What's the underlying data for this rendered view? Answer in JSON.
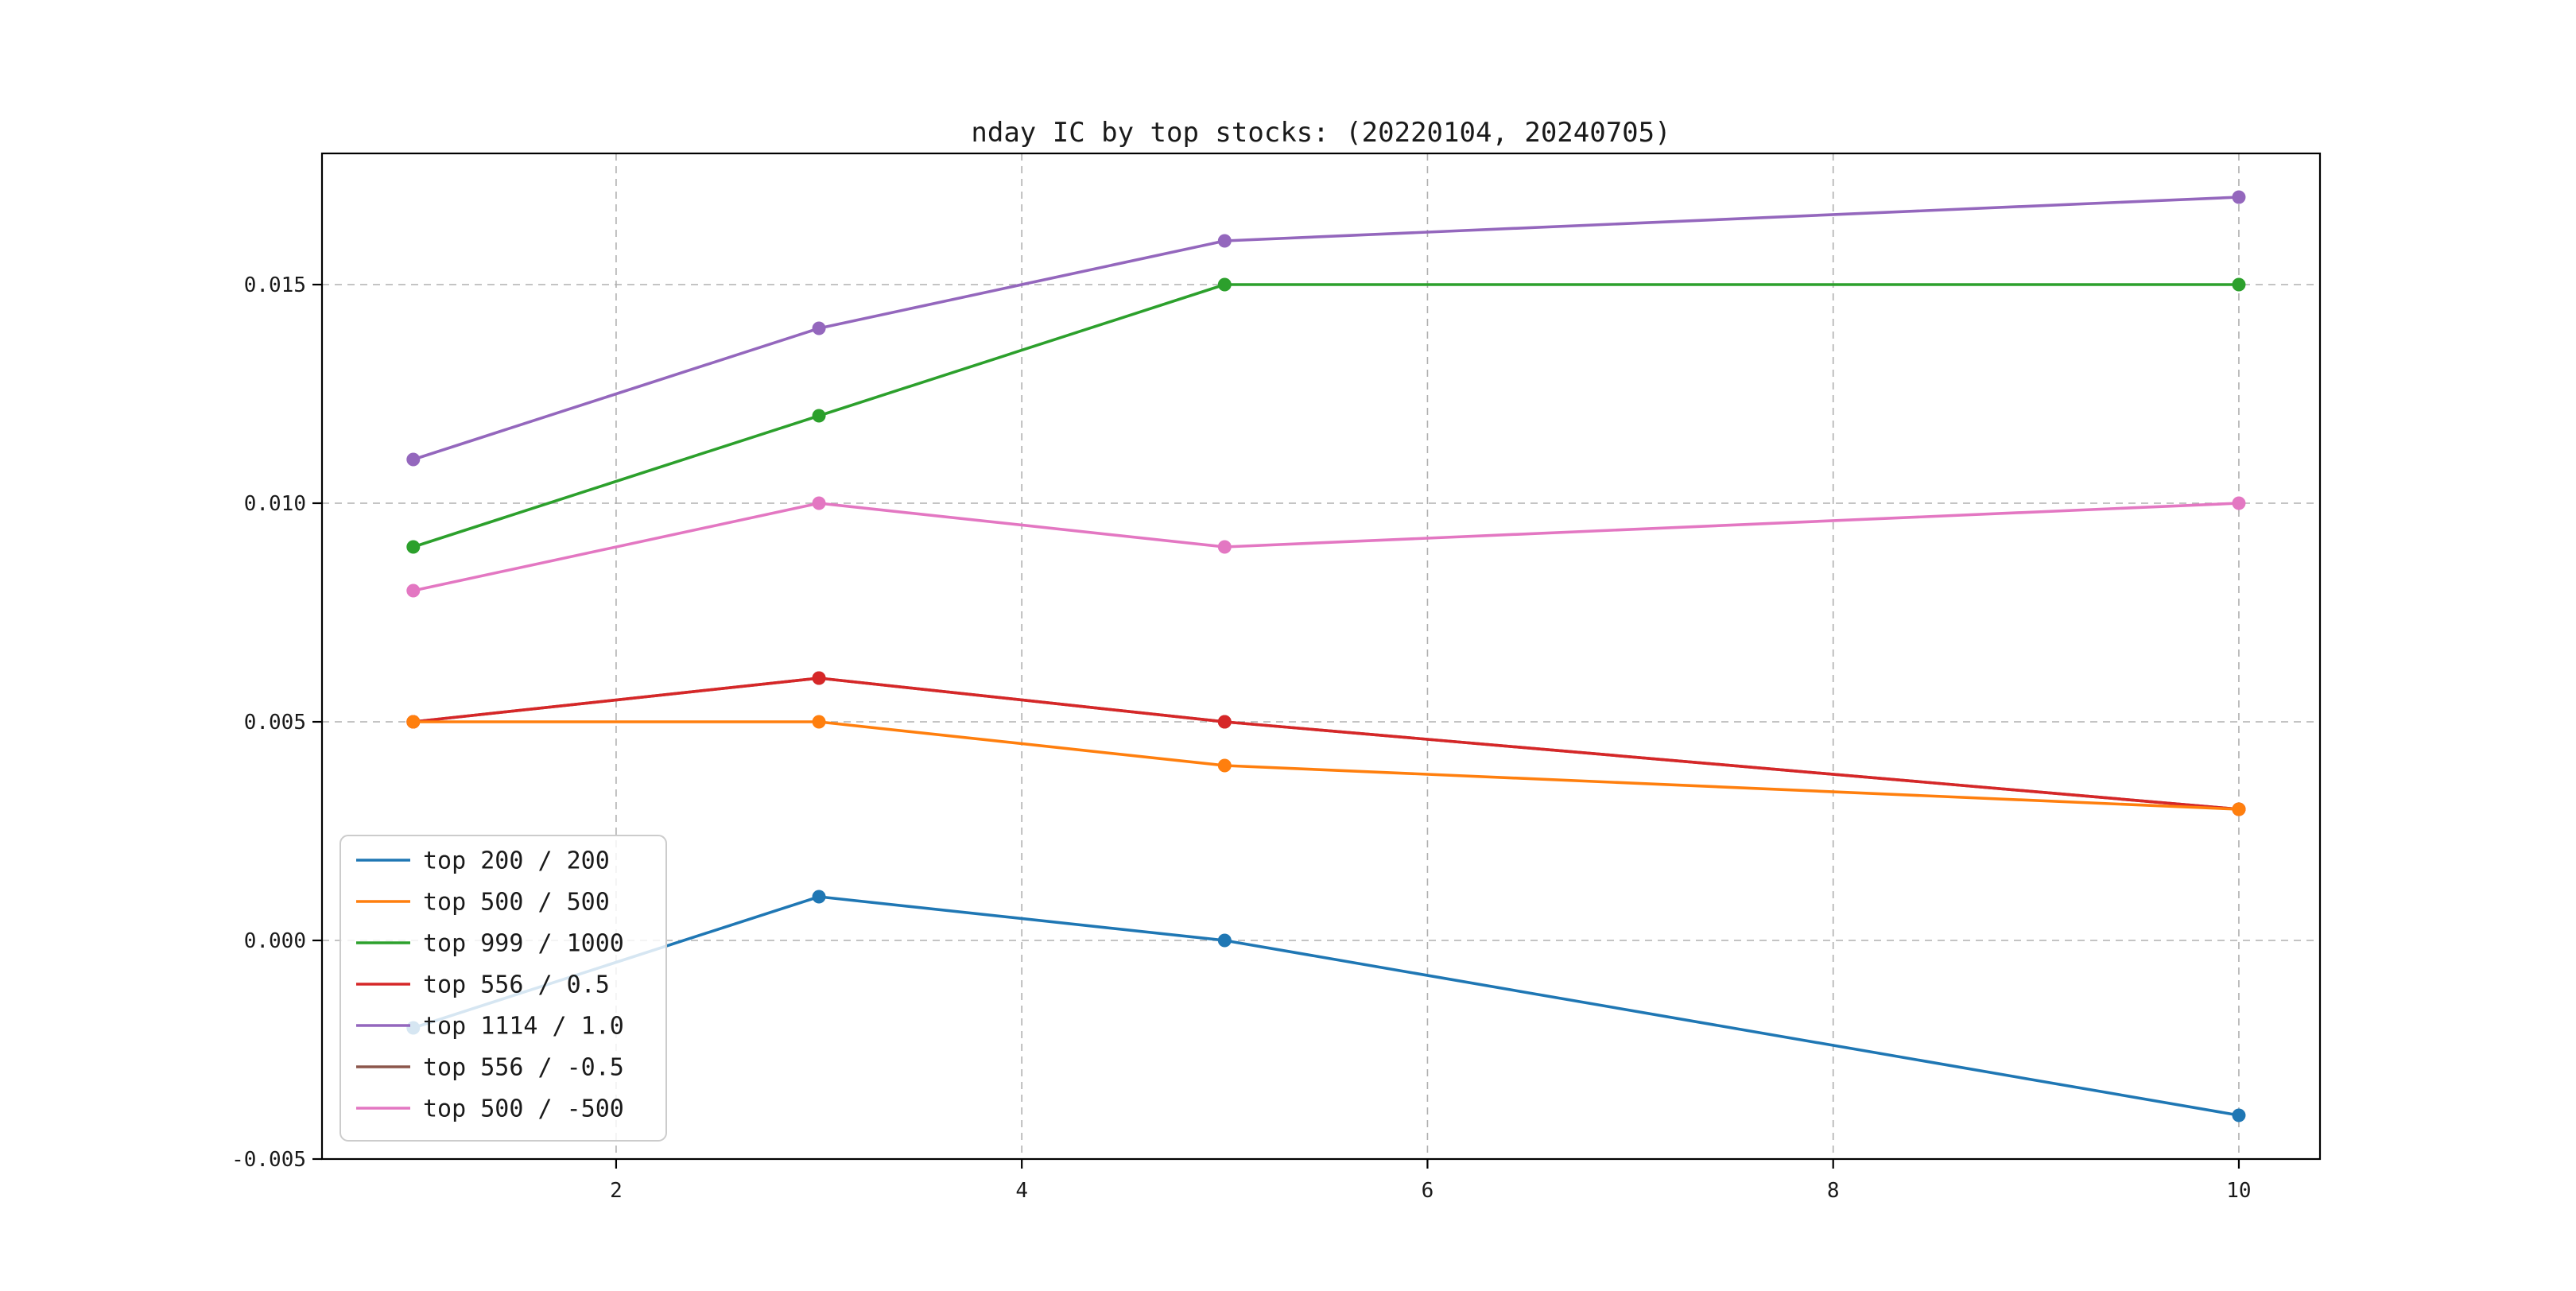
{
  "figure": {
    "title": "nday IC by top stocks: (20220104, 20240705)"
  },
  "chart_data": {
    "type": "line",
    "title": "nday IC by top stocks: (20220104, 20240705)",
    "xlabel": "",
    "ylabel": "",
    "x": [
      1,
      3,
      5,
      10
    ],
    "series": [
      {
        "name": "top 200 / 200",
        "color": "#1f77b4",
        "values": [
          -0.002,
          0.001,
          0.0,
          -0.004
        ]
      },
      {
        "name": "top 500 / 500",
        "color": "#ff7f0e",
        "values": [
          0.005,
          0.005,
          0.004,
          0.003
        ]
      },
      {
        "name": "top 999 / 1000",
        "color": "#2ca02c",
        "values": [
          0.009,
          0.012,
          0.015,
          0.015
        ]
      },
      {
        "name": "top 556 / 0.5",
        "color": "#d62728",
        "values": [
          0.005,
          0.006,
          0.005,
          0.003
        ]
      },
      {
        "name": "top 1114 / 1.0",
        "color": "#9467bd",
        "values": [
          0.011,
          0.014,
          0.016,
          0.017
        ]
      },
      {
        "name": "top 556 / -0.5",
        "color": "#8c564b",
        "values": [
          0.005,
          0.006,
          0.005,
          0.003
        ]
      },
      {
        "name": "top 500 / -500",
        "color": "#e377c2",
        "values": [
          0.008,
          0.01,
          0.009,
          0.01
        ]
      }
    ],
    "marker": "o",
    "xlim": [
      0.55,
      10.4
    ],
    "ylim": [
      -0.005,
      0.018
    ],
    "xticks": [
      2,
      4,
      6,
      8,
      10
    ],
    "yticks": [
      -0.005,
      0.0,
      0.005,
      0.01,
      0.015
    ],
    "xtick_labels": [
      "2",
      "4",
      "6",
      "8",
      "10"
    ],
    "ytick_labels": [
      "-0.005",
      "0.000",
      "0.005",
      "0.010",
      "0.015"
    ],
    "grid": true,
    "legend_position": "lower left"
  }
}
